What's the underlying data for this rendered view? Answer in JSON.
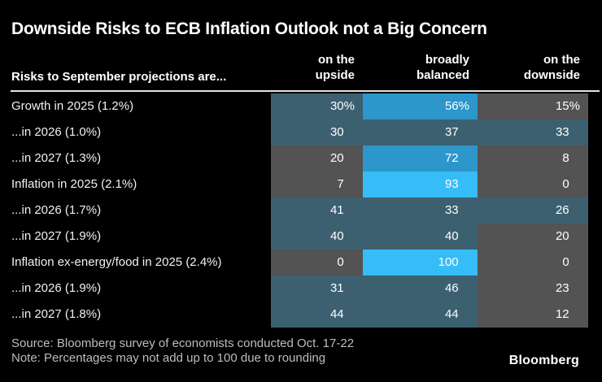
{
  "title": "Downside Risks to ECB Inflation Outlook not a Big Concern",
  "footer": {
    "source": "Source: Bloomberg survey of economists conducted Oct. 17-22",
    "note": "Note: Percentages may not add up to 100 due to rounding",
    "logo": "Bloomberg"
  },
  "colors": {
    "background": "#000000",
    "title_text": "#ffffff",
    "header_text": "#ffffff",
    "row_label_text": "#f1f1f1",
    "value_text": "#ffffff",
    "divider": "#e2e2e2",
    "footer_text": "#bdbdbd",
    "logo_text": "#ffffff"
  },
  "chart_data": {
    "type": "heatmap",
    "title": "Downside Risks to ECB Inflation Outlook not a Big Concern",
    "row_label_header": "Risks to September projections are...",
    "columns": [
      {
        "label": "on the upside",
        "line1": "on the",
        "line2": "upside"
      },
      {
        "label": "broadly balanced",
        "line1": "broadly",
        "line2": "balanced"
      },
      {
        "label": "on the downside",
        "line1": "on the",
        "line2": "downside"
      }
    ],
    "rows": [
      {
        "label": "Growth in 2025 (1.2%)",
        "values": [
          30,
          56,
          15
        ],
        "display": [
          "30%",
          "56%",
          "15%"
        ],
        "colors": [
          "slate",
          "blue",
          "gray"
        ]
      },
      {
        "label": "...in 2026 (1.0%)",
        "values": [
          30,
          37,
          33
        ],
        "display": [
          "30",
          "37",
          "33"
        ],
        "colors": [
          "slate",
          "slate",
          "slate"
        ]
      },
      {
        "label": "...in 2027 (1.3%)",
        "values": [
          20,
          72,
          8
        ],
        "display": [
          "20",
          "72",
          "8"
        ],
        "colors": [
          "gray",
          "blue",
          "gray"
        ]
      },
      {
        "label": "Inflation in 2025 (2.1%)",
        "values": [
          7,
          93,
          0
        ],
        "display": [
          "7",
          "93",
          "0"
        ],
        "colors": [
          "gray",
          "cyan",
          "gray"
        ]
      },
      {
        "label": "...in 2026 (1.7%)",
        "values": [
          41,
          33,
          26
        ],
        "display": [
          "41",
          "33",
          "26"
        ],
        "colors": [
          "slate",
          "slate",
          "slate"
        ]
      },
      {
        "label": "...in 2027 (1.9%)",
        "values": [
          40,
          40,
          20
        ],
        "display": [
          "40",
          "40",
          "20"
        ],
        "colors": [
          "slate",
          "slate",
          "gray"
        ]
      },
      {
        "label": "Inflation ex-energy/food in 2025 (2.4%)",
        "values": [
          0,
          100,
          0
        ],
        "display": [
          "0",
          "100",
          "0"
        ],
        "colors": [
          "gray",
          "cyan",
          "gray"
        ]
      },
      {
        "label": "...in 2026 (1.9%)",
        "values": [
          31,
          46,
          23
        ],
        "display": [
          "31",
          "46",
          "23"
        ],
        "colors": [
          "slate",
          "slate",
          "gray"
        ]
      },
      {
        "label": "...in 2027 (1.8%)",
        "values": [
          44,
          44,
          12
        ],
        "display": [
          "44",
          "44",
          "12"
        ],
        "colors": [
          "slate",
          "slate",
          "gray"
        ]
      }
    ],
    "palette": {
      "gray": "#535353",
      "slate": "#3c6070",
      "blue": "#2d96cb",
      "cyan": "#36bcf7"
    },
    "value_suffix_first_row": "%",
    "legend": "none",
    "grid": "off"
  }
}
